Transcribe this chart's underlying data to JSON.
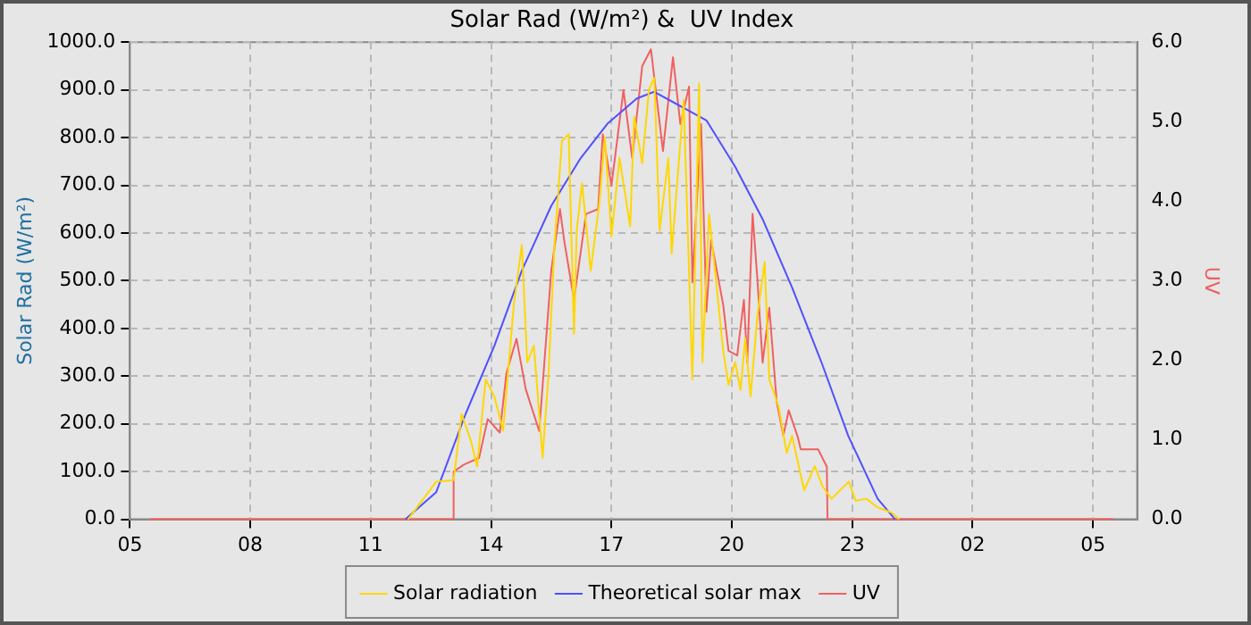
{
  "chart_data": {
    "type": "line",
    "title": "Solar Rad (W/m²) &  UV Index",
    "ylabel": "Solar Rad (W/m²)",
    "y2label": "UV",
    "xlim": [
      "--01-01T05:00",
      "--01-02T06:06"
    ],
    "xticks": [
      {
        "value": "--01-01T05:00",
        "label": "05"
      },
      {
        "value": "--01-01T08:00",
        "label": "08"
      },
      {
        "value": "--01-01T11:00",
        "label": "11"
      },
      {
        "value": "--01-01T14:00",
        "label": "14"
      },
      {
        "value": "--01-01T17:00",
        "label": "17"
      },
      {
        "value": "--01-01T20:00",
        "label": "20"
      },
      {
        "value": "--01-01T23:00",
        "label": "23"
      },
      {
        "value": "--01-02T02:00",
        "label": "02"
      },
      {
        "value": "--01-02T05:00",
        "label": "05"
      }
    ],
    "ylim": [
      0,
      1000
    ],
    "yticks": [
      {
        "value": 0,
        "label": "0.0"
      },
      {
        "value": 100,
        "label": "100.0"
      },
      {
        "value": 200,
        "label": "200.0"
      },
      {
        "value": 300,
        "label": "300.0"
      },
      {
        "value": 400,
        "label": "400.0"
      },
      {
        "value": 500,
        "label": "500.0"
      },
      {
        "value": 600,
        "label": "600.0"
      },
      {
        "value": 700,
        "label": "700.0"
      },
      {
        "value": 800,
        "label": "800.0"
      },
      {
        "value": 900,
        "label": "900.0"
      },
      {
        "value": 1000,
        "label": "1000.0"
      }
    ],
    "y2lim": [
      0,
      6
    ],
    "y2ticks": [
      {
        "value": 0,
        "label": "0.0"
      },
      {
        "value": 1,
        "label": "1.0"
      },
      {
        "value": 2,
        "label": "2.0"
      },
      {
        "value": 3,
        "label": "3.0"
      },
      {
        "value": 4,
        "label": "4.0"
      },
      {
        "value": 5,
        "label": "5.0"
      },
      {
        "value": 6,
        "label": "6.0"
      }
    ],
    "grid": true,
    "legend": "bottom",
    "marker": "none",
    "line_style": "solid",
    "series": [
      {
        "name": "Solar radiation",
        "color": "#ffd700",
        "x": [
          "--01-01T11:56",
          "--01-01T12:38",
          "--01-01T13:04",
          "--01-01T13:16",
          "--01-01T13:30",
          "--01-01T13:39",
          "--01-01T13:52",
          "--01-01T14:05",
          "--01-01T14:18",
          "--01-01T14:34",
          "--01-01T14:46",
          "--01-01T14:54",
          "--01-01T15:04",
          "--01-01T15:17",
          "--01-01T15:26",
          "--01-01T15:35",
          "--01-01T15:46",
          "--01-01T15:56",
          "--01-01T16:04",
          "--01-01T16:08",
          "--01-01T16:16",
          "--01-01T16:29",
          "--01-01T16:42",
          "--01-01T16:50",
          "--01-01T17:00",
          "--01-01T17:12",
          "--01-01T17:28",
          "--01-01T17:34",
          "--01-01T17:46",
          "--01-01T17:56",
          "--01-01T18:04",
          "--01-01T18:12",
          "--01-01T18:25",
          "--01-01T18:30",
          "--01-01T18:48",
          "--01-01T19:01",
          "--01-01T19:11",
          "--01-01T19:16",
          "--01-01T19:26",
          "--01-01T19:34",
          "--01-01T19:47",
          "--01-01T19:55",
          "--01-01T20:05",
          "--01-01T20:13",
          "--01-01T20:20",
          "--01-01T20:28",
          "--01-01T20:38",
          "--01-01T20:49",
          "--01-01T20:56",
          "--01-01T21:10",
          "--01-01T21:22",
          "--01-01T21:30",
          "--01-01T21:48",
          "--01-01T22:04",
          "--01-01T22:16",
          "--01-01T22:29",
          "--01-01T22:55",
          "--01-01T23:05",
          "--01-01T23:21",
          "--01-01T23:38",
          "--01-01T23:59",
          "--01-02T00:10"
        ],
        "values": [
          0,
          79,
          82,
          221,
          164,
          111,
          293,
          257,
          186,
          450,
          575,
          329,
          364,
          129,
          307,
          579,
          793,
          807,
          389,
          604,
          704,
          521,
          664,
          800,
          593,
          757,
          614,
          843,
          746,
          900,
          925,
          604,
          757,
          557,
          879,
          293,
          914,
          329,
          639,
          532,
          354,
          282,
          329,
          271,
          379,
          257,
          425,
          539,
          293,
          236,
          139,
          175,
          61,
          111,
          68,
          43,
          79,
          39,
          43,
          25,
          14,
          0
        ]
      },
      {
        "name": "Theoretical solar max",
        "color": "#5050ff",
        "x": [
          "--01-01T11:52",
          "--01-01T12:38",
          "--01-01T13:22",
          "--01-01T14:05",
          "--01-01T14:46",
          "--01-01T15:30",
          "--01-01T16:14",
          "--01-01T16:54",
          "--01-01T17:38",
          "--01-01T18:04",
          "--01-01T19:22",
          "--01-01T20:05",
          "--01-01T20:46",
          "--01-01T21:30",
          "--01-01T22:14",
          "--01-01T22:54",
          "--01-01T23:38",
          "--01-02T00:04"
        ],
        "values": [
          0,
          57,
          221,
          364,
          521,
          657,
          757,
          829,
          882,
          896,
          836,
          739,
          629,
          486,
          329,
          175,
          43,
          0
        ]
      },
      {
        "name": "UV",
        "color": "#f06060",
        "axis": "y2",
        "x": [
          "--01-01T05:30",
          "--01-01T13:03",
          "--01-01T13:04",
          "--01-01T13:20",
          "--01-01T13:42",
          "--01-01T13:55",
          "--01-01T14:13",
          "--01-01T14:23",
          "--01-01T14:38",
          "--01-01T14:52",
          "--01-01T15:12",
          "--01-01T15:30",
          "--01-01T15:43",
          "--01-01T15:50",
          "--01-01T16:04",
          "--01-01T16:22",
          "--01-01T16:40",
          "--01-01T16:47",
          "--01-01T17:00",
          "--01-01T17:18",
          "--01-01T17:31",
          "--01-01T17:46",
          "--01-01T17:59",
          "--01-01T18:17",
          "--01-01T18:32",
          "--01-01T18:43",
          "--01-01T18:56",
          "--01-01T19:01",
          "--01-01T19:14",
          "--01-01T19:22",
          "--01-01T19:29",
          "--01-01T19:47",
          "--01-01T19:55",
          "--01-01T20:08",
          "--01-01T20:18",
          "--01-01T20:23",
          "--01-01T20:31",
          "--01-01T20:38",
          "--01-01T20:46",
          "--01-01T20:56",
          "--01-01T21:07",
          "--01-01T21:17",
          "--01-01T21:25",
          "--01-01T21:38",
          "--01-01T21:43",
          "--01-01T22:09",
          "--01-01T22:22",
          "--01-01T22:23",
          "--01-02T05:30"
        ],
        "values": [
          0,
          0,
          0.6,
          0.69,
          0.77,
          1.26,
          1.09,
          1.84,
          2.27,
          1.63,
          1.11,
          3.13,
          3.9,
          3.47,
          2.76,
          3.84,
          3.9,
          4.84,
          4.2,
          5.4,
          4.54,
          5.7,
          5.91,
          4.63,
          5.81,
          4.97,
          5.44,
          2.98,
          4.97,
          2.61,
          3.51,
          2.7,
          2.12,
          2.06,
          2.76,
          1.97,
          3.84,
          3.04,
          1.97,
          2.66,
          1.48,
          1.05,
          1.37,
          1.05,
          0.88,
          0.88,
          0.66,
          0,
          0
        ]
      }
    ]
  }
}
